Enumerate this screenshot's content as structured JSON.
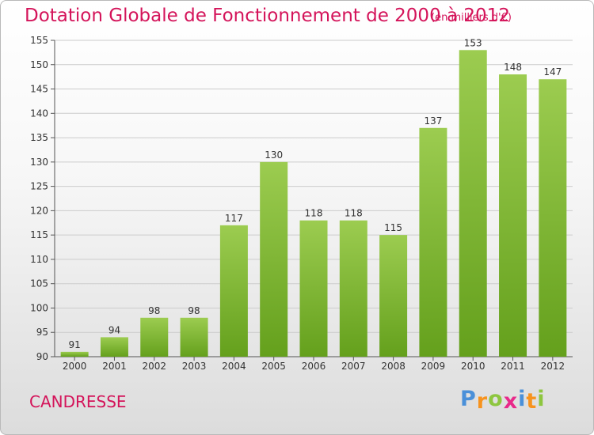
{
  "header": {
    "title": "Dotation Globale de Fonctionnement de 2000 à 2012",
    "subtitle": "(en milliers d'€)"
  },
  "footer": {
    "commune": "CANDRESSE",
    "brand": "Proxiti",
    "brand_letters": [
      "P",
      "r",
      "o",
      "x",
      "i",
      "t",
      "i"
    ],
    "brand_colors": [
      "#4a90d9",
      "#f7931e",
      "#8dc63f",
      "#e8298a",
      "#4a90d9",
      "#f7931e",
      "#8dc63f"
    ]
  },
  "colors": {
    "title": "#d4145a",
    "bar_top": "#9ccc50",
    "bar_bottom": "#64a01c",
    "grid": "#cccccc",
    "axis_text": "#333333"
  },
  "chart_data": {
    "type": "bar",
    "title": "Dotation Globale de Fonctionnement de 2000 à 2012",
    "subtitle": "(en milliers d'€)",
    "categories": [
      "2000",
      "2001",
      "2002",
      "2003",
      "2004",
      "2005",
      "2006",
      "2007",
      "2008",
      "2009",
      "2010",
      "2011",
      "2012"
    ],
    "values": [
      91,
      94,
      98,
      98,
      117,
      130,
      118,
      118,
      115,
      137,
      153,
      148,
      147
    ],
    "ylim": [
      90,
      155
    ],
    "yticks": [
      90,
      95,
      100,
      105,
      110,
      115,
      120,
      125,
      130,
      135,
      140,
      145,
      150,
      155
    ],
    "grid": true,
    "xlabel": "",
    "ylabel": ""
  }
}
